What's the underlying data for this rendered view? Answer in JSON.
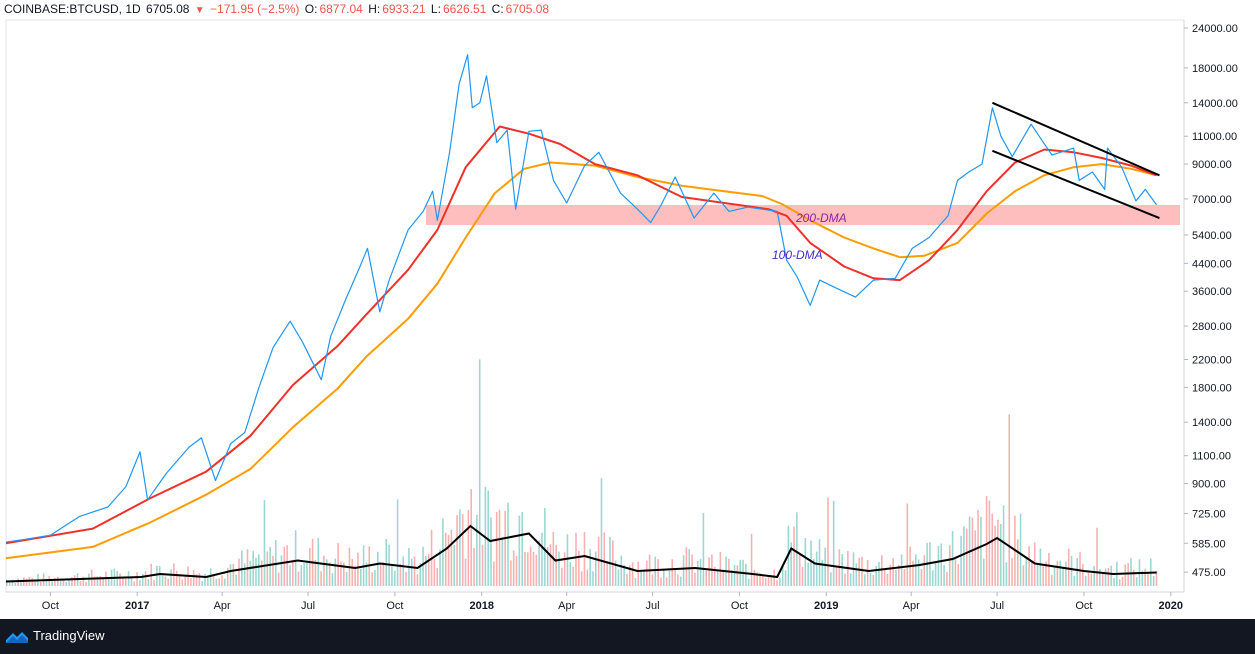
{
  "header": {
    "symbol": "COINBASE:BTCUSD, 1D",
    "last": "6705.08",
    "change": "−171.95 (−2.5%)",
    "o_label": "O:",
    "o_value": "6877.04",
    "h_label": "H:",
    "h_value": "6933.21",
    "l_label": "L:",
    "l_value": "6626.51",
    "c_label": "C:",
    "c_value": "6705.08"
  },
  "footer": {
    "brand": "TradingView"
  },
  "colors": {
    "price": "#2196f3",
    "ma100": "#f0312a",
    "ma200": "#ff9c00",
    "zone": "#ffb3b3",
    "channel": "#000000",
    "vol_up": "#26a69a",
    "vol_down": "#ef5350",
    "label_200": "#8e24aa",
    "label_100": "#3f2fc8",
    "footer_bg": "#131722"
  },
  "chart_data": {
    "type": "line",
    "x_ticks": [
      "Oct",
      "2017",
      "Apr",
      "Jul",
      "Oct",
      "2018",
      "Apr",
      "Jul",
      "Oct",
      "2019",
      "Apr",
      "Jul",
      "Oct",
      "2020"
    ],
    "y_ticks": [
      "24000.00",
      "18000.00",
      "14000.00",
      "11000.00",
      "9000.00",
      "7000.00",
      "5400.00",
      "4400.00",
      "3600.00",
      "2800.00",
      "2200.00",
      "1800.00",
      "1400.00",
      "1100.00",
      "900.00",
      "725.00",
      "585.00",
      "475.00"
    ],
    "y_scale": "log",
    "annotations": [
      "200-DMA",
      "100-DMA"
    ],
    "series": [
      {
        "name": "price",
        "points": [
          [
            "2016-08-15",
            590
          ],
          [
            "2016-09-01",
            600
          ],
          [
            "2016-10-01",
            620
          ],
          [
            "2016-11-01",
            710
          ],
          [
            "2016-12-01",
            760
          ],
          [
            "2016-12-20",
            880
          ],
          [
            "2017-01-04",
            1130
          ],
          [
            "2017-01-12",
            800
          ],
          [
            "2017-02-01",
            970
          ],
          [
            "2017-02-25",
            1170
          ],
          [
            "2017-03-10",
            1250
          ],
          [
            "2017-03-25",
            920
          ],
          [
            "2017-04-10",
            1200
          ],
          [
            "2017-04-25",
            1300
          ],
          [
            "2017-05-10",
            1800
          ],
          [
            "2017-05-25",
            2400
          ],
          [
            "2017-06-12",
            2900
          ],
          [
            "2017-06-25",
            2500
          ],
          [
            "2017-07-15",
            1900
          ],
          [
            "2017-07-25",
            2600
          ],
          [
            "2017-08-10",
            3400
          ],
          [
            "2017-08-25",
            4300
          ],
          [
            "2017-09-02",
            4900
          ],
          [
            "2017-09-15",
            3100
          ],
          [
            "2017-09-25",
            3900
          ],
          [
            "2017-10-15",
            5600
          ],
          [
            "2017-10-31",
            6400
          ],
          [
            "2017-11-10",
            7400
          ],
          [
            "2017-11-15",
            6000
          ],
          [
            "2017-11-28",
            9800
          ],
          [
            "2017-12-08",
            16000
          ],
          [
            "2017-12-17",
            19800
          ],
          [
            "2017-12-22",
            13500
          ],
          [
            "2017-12-30",
            14000
          ],
          [
            "2018-01-06",
            17000
          ],
          [
            "2018-01-17",
            10500
          ],
          [
            "2018-01-28",
            11500
          ],
          [
            "2018-02-06",
            6500
          ],
          [
            "2018-02-20",
            11400
          ],
          [
            "2018-03-05",
            11500
          ],
          [
            "2018-03-18",
            8000
          ],
          [
            "2018-04-01",
            6800
          ],
          [
            "2018-04-20",
            8900
          ],
          [
            "2018-05-05",
            9800
          ],
          [
            "2018-05-28",
            7300
          ],
          [
            "2018-06-15",
            6500
          ],
          [
            "2018-06-29",
            5900
          ],
          [
            "2018-07-10",
            6700
          ],
          [
            "2018-07-25",
            8200
          ],
          [
            "2018-08-14",
            6100
          ],
          [
            "2018-09-04",
            7300
          ],
          [
            "2018-09-20",
            6400
          ],
          [
            "2018-10-10",
            6600
          ],
          [
            "2018-11-10",
            6400
          ],
          [
            "2018-11-20",
            4500
          ],
          [
            "2018-12-01",
            4000
          ],
          [
            "2018-12-15",
            3250
          ],
          [
            "2018-12-25",
            3900
          ],
          [
            "2019-01-10",
            3700
          ],
          [
            "2019-02-01",
            3450
          ],
          [
            "2019-02-20",
            3900
          ],
          [
            "2019-03-15",
            3950
          ],
          [
            "2019-04-02",
            4900
          ],
          [
            "2019-04-20",
            5300
          ],
          [
            "2019-05-10",
            6200
          ],
          [
            "2019-05-20",
            8000
          ],
          [
            "2019-06-01",
            8500
          ],
          [
            "2019-06-15",
            9000
          ],
          [
            "2019-06-26",
            13500
          ],
          [
            "2019-07-05",
            11000
          ],
          [
            "2019-07-17",
            9500
          ],
          [
            "2019-08-06",
            12000
          ],
          [
            "2019-08-28",
            9600
          ],
          [
            "2019-09-20",
            10100
          ],
          [
            "2019-09-26",
            8000
          ],
          [
            "2019-10-10",
            8500
          ],
          [
            "2019-10-23",
            7500
          ],
          [
            "2019-10-26",
            10100
          ],
          [
            "2019-11-10",
            8800
          ],
          [
            "2019-11-25",
            6900
          ],
          [
            "2019-12-05",
            7500
          ],
          [
            "2019-12-17",
            6705
          ]
        ]
      },
      {
        "name": "100-DMA",
        "points": [
          [
            "2016-08-15",
            585
          ],
          [
            "2016-11-15",
            650
          ],
          [
            "2017-01-15",
            810
          ],
          [
            "2017-03-15",
            980
          ],
          [
            "2017-05-01",
            1270
          ],
          [
            "2017-06-15",
            1830
          ],
          [
            "2017-08-01",
            2420
          ],
          [
            "2017-09-01",
            3050
          ],
          [
            "2017-10-15",
            4200
          ],
          [
            "2017-11-15",
            5600
          ],
          [
            "2017-12-15",
            8800
          ],
          [
            "2018-01-20",
            11800
          ],
          [
            "2018-02-20",
            11200
          ],
          [
            "2018-03-25",
            10400
          ],
          [
            "2018-05-01",
            9000
          ],
          [
            "2018-06-15",
            8300
          ],
          [
            "2018-08-01",
            7100
          ],
          [
            "2018-09-15",
            6800
          ],
          [
            "2018-11-01",
            6500
          ],
          [
            "2018-11-20",
            6200
          ],
          [
            "2018-12-15",
            5100
          ],
          [
            "2019-01-20",
            4300
          ],
          [
            "2019-02-20",
            3950
          ],
          [
            "2019-03-20",
            3900
          ],
          [
            "2019-04-20",
            4500
          ],
          [
            "2019-05-20",
            5600
          ],
          [
            "2019-06-20",
            7400
          ],
          [
            "2019-07-20",
            9100
          ],
          [
            "2019-08-20",
            10000
          ],
          [
            "2019-09-20",
            9800
          ],
          [
            "2019-10-20",
            9400
          ],
          [
            "2019-11-20",
            8900
          ],
          [
            "2019-12-17",
            8300
          ]
        ]
      },
      {
        "name": "200-DMA",
        "points": [
          [
            "2016-08-15",
            525
          ],
          [
            "2016-11-15",
            570
          ],
          [
            "2017-01-15",
            680
          ],
          [
            "2017-03-15",
            830
          ],
          [
            "2017-05-01",
            1000
          ],
          [
            "2017-06-15",
            1350
          ],
          [
            "2017-08-01",
            1780
          ],
          [
            "2017-09-01",
            2250
          ],
          [
            "2017-10-15",
            2950
          ],
          [
            "2017-11-15",
            3800
          ],
          [
            "2017-12-15",
            5300
          ],
          [
            "2018-01-15",
            7300
          ],
          [
            "2018-02-15",
            8700
          ],
          [
            "2018-03-15",
            9100
          ],
          [
            "2018-05-01",
            8900
          ],
          [
            "2018-06-15",
            8200
          ],
          [
            "2018-08-01",
            7700
          ],
          [
            "2018-09-15",
            7400
          ],
          [
            "2018-10-25",
            7150
          ],
          [
            "2018-11-15",
            6750
          ],
          [
            "2018-12-15",
            6000
          ],
          [
            "2019-01-20",
            5300
          ],
          [
            "2019-02-20",
            4900
          ],
          [
            "2019-03-20",
            4600
          ],
          [
            "2019-04-15",
            4650
          ],
          [
            "2019-05-20",
            5100
          ],
          [
            "2019-06-20",
            6300
          ],
          [
            "2019-07-20",
            7400
          ],
          [
            "2019-08-20",
            8300
          ],
          [
            "2019-09-20",
            8800
          ],
          [
            "2019-10-20",
            9000
          ],
          [
            "2019-11-20",
            8700
          ],
          [
            "2019-12-17",
            8300
          ]
        ]
      },
      {
        "name": "volume-ma",
        "points": [
          [
            "2016-08-15",
            0.03
          ],
          [
            "2017-01-05",
            0.06
          ],
          [
            "2017-01-25",
            0.08
          ],
          [
            "2017-03-15",
            0.06
          ],
          [
            "2017-04-10",
            0.1
          ],
          [
            "2017-06-20",
            0.17
          ],
          [
            "2017-08-20",
            0.12
          ],
          [
            "2017-09-15",
            0.15
          ],
          [
            "2017-10-25",
            0.12
          ],
          [
            "2017-11-25",
            0.25
          ],
          [
            "2017-12-20",
            0.4
          ],
          [
            "2018-01-10",
            0.3
          ],
          [
            "2018-02-20",
            0.35
          ],
          [
            "2018-03-20",
            0.17
          ],
          [
            "2018-04-20",
            0.2
          ],
          [
            "2018-06-15",
            0.1
          ],
          [
            "2018-08-15",
            0.12
          ],
          [
            "2018-10-15",
            0.08
          ],
          [
            "2018-11-10",
            0.06
          ],
          [
            "2018-11-25",
            0.25
          ],
          [
            "2018-12-20",
            0.15
          ],
          [
            "2019-02-15",
            0.1
          ],
          [
            "2019-04-10",
            0.14
          ],
          [
            "2019-05-15",
            0.18
          ],
          [
            "2019-06-20",
            0.28
          ],
          [
            "2019-07-01",
            0.32
          ],
          [
            "2019-08-10",
            0.15
          ],
          [
            "2019-10-01",
            0.1
          ],
          [
            "2019-11-01",
            0.08
          ],
          [
            "2019-12-17",
            0.09
          ]
        ]
      }
    ],
    "support_zone": [
      5800,
      6700
    ],
    "channel_upper": [
      [
        "2019-06-26",
        14000
      ],
      [
        "2019-12-20",
        8300
      ]
    ],
    "channel_lower": [
      [
        "2019-06-26",
        9900
      ],
      [
        "2019-12-20",
        6100
      ]
    ]
  }
}
